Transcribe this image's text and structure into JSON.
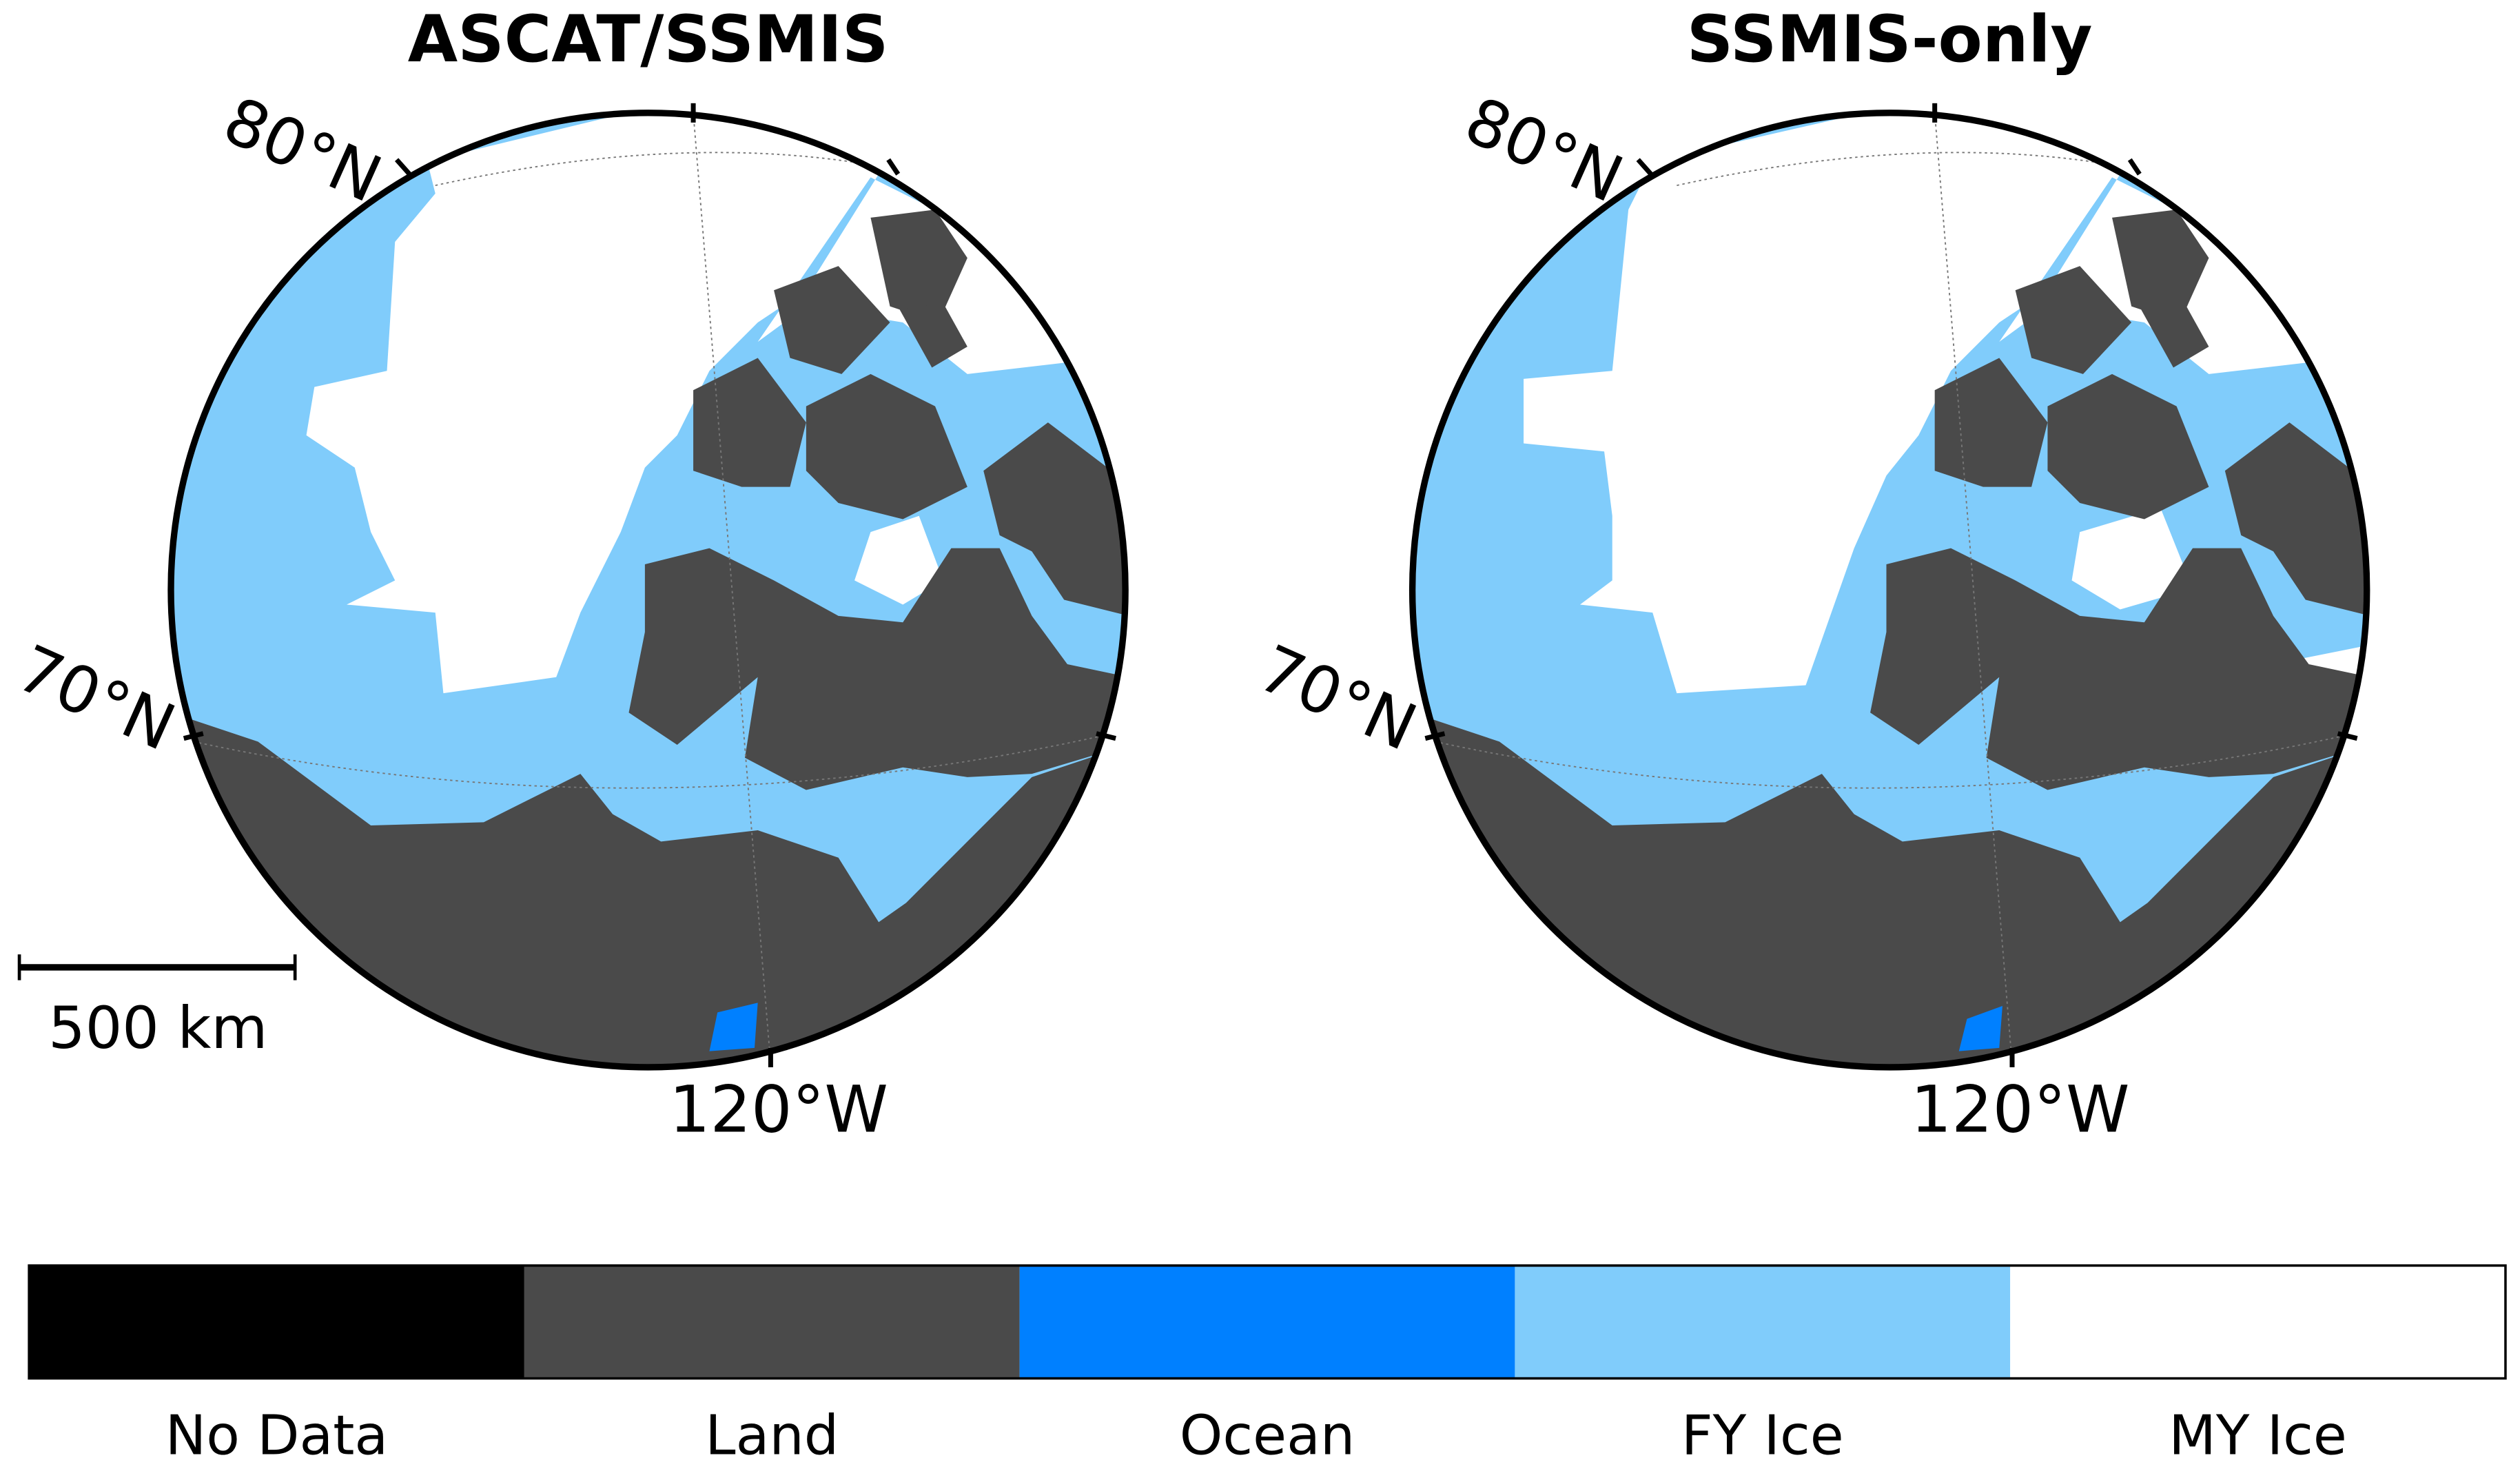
{
  "panels": [
    {
      "title": "ASCAT/SSMIS",
      "lat_labels": [
        "80°N",
        "70°N"
      ],
      "lon_label": "120°W"
    },
    {
      "title": "SSMIS-only",
      "lat_labels": [
        "80°N",
        "70°N"
      ],
      "lon_label": "120°W"
    }
  ],
  "scale_bar": "500 km",
  "legend": [
    {
      "label": "No Data",
      "color": "#000000"
    },
    {
      "label": "Land",
      "color": "#4a4a4a"
    },
    {
      "label": "Ocean",
      "color": "#0080ff"
    },
    {
      "label": "FY Ice",
      "color": "#80ccfb"
    },
    {
      "label": "MY Ice",
      "color": "#ffffff"
    }
  ]
}
